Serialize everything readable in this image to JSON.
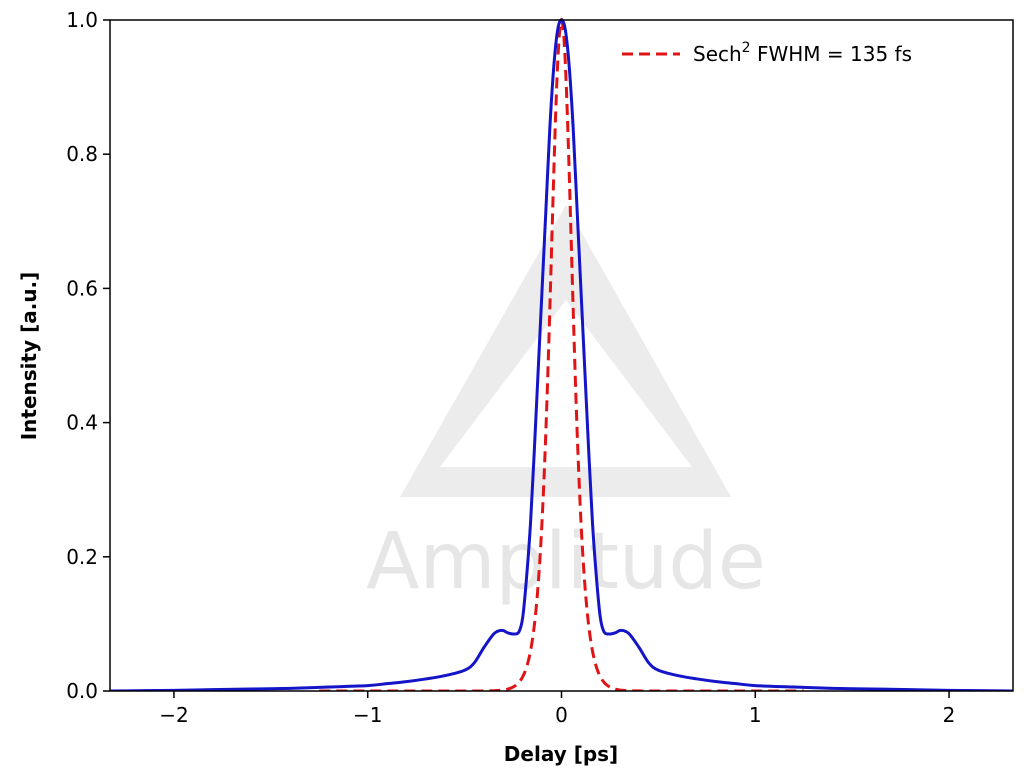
{
  "chart_data": {
    "type": "line",
    "title": "",
    "xlabel": "Delay [ps]",
    "ylabel": "Intensity [a.u.]",
    "xlim": [
      -2.33,
      2.33
    ],
    "ylim": [
      0.0,
      1.0
    ],
    "xticks": [
      {
        "value": -2,
        "label": "−2"
      },
      {
        "value": -1,
        "label": "−1"
      },
      {
        "value": 0,
        "label": "0"
      },
      {
        "value": 1,
        "label": "1"
      },
      {
        "value": 2,
        "label": "2"
      }
    ],
    "yticks": [
      {
        "value": 0.0,
        "label": "0.0"
      },
      {
        "value": 0.2,
        "label": "0.2"
      },
      {
        "value": 0.4,
        "label": "0.4"
      },
      {
        "value": 0.6,
        "label": "0.6"
      },
      {
        "value": 0.8,
        "label": "0.8"
      },
      {
        "value": 1.0,
        "label": "1.0"
      }
    ],
    "grid": false,
    "legend": {
      "position": "top-right",
      "label_main": "Sech",
      "label_sup": "2",
      "label_rest": " FWHM = 135 fs"
    },
    "series": [
      {
        "name": "",
        "color": "#1414c8",
        "style": "solid",
        "x": [
          -2.33,
          -2.0,
          -1.8,
          -1.6,
          -1.4,
          -1.2,
          -1.0,
          -0.9,
          -0.8,
          -0.7,
          -0.6,
          -0.5,
          -0.45,
          -0.4,
          -0.35,
          -0.32,
          -0.3,
          -0.28,
          -0.25,
          -0.22,
          -0.2,
          -0.18,
          -0.16,
          -0.14,
          -0.12,
          -0.1,
          -0.08,
          -0.06,
          -0.04,
          -0.02,
          0.0,
          0.02,
          0.04,
          0.06,
          0.08,
          0.1,
          0.12,
          0.14,
          0.16,
          0.18,
          0.2,
          0.22,
          0.25,
          0.28,
          0.3,
          0.32,
          0.35,
          0.4,
          0.45,
          0.5,
          0.6,
          0.7,
          0.8,
          0.9,
          1.0,
          1.2,
          1.4,
          1.6,
          1.8,
          2.0,
          2.33
        ],
        "y": [
          0.0,
          0.001,
          0.002,
          0.003,
          0.004,
          0.006,
          0.008,
          0.011,
          0.014,
          0.018,
          0.023,
          0.031,
          0.042,
          0.065,
          0.085,
          0.09,
          0.09,
          0.087,
          0.085,
          0.088,
          0.11,
          0.17,
          0.25,
          0.36,
          0.48,
          0.6,
          0.72,
          0.84,
          0.93,
          0.985,
          1.0,
          0.985,
          0.93,
          0.84,
          0.72,
          0.6,
          0.48,
          0.36,
          0.25,
          0.17,
          0.11,
          0.088,
          0.085,
          0.087,
          0.09,
          0.09,
          0.085,
          0.065,
          0.042,
          0.031,
          0.023,
          0.018,
          0.014,
          0.011,
          0.008,
          0.006,
          0.004,
          0.003,
          0.002,
          0.001,
          0.0
        ]
      },
      {
        "name": "Sech² FWHM = 135 fs",
        "color": "#e01414",
        "style": "dashed",
        "function": "sech2",
        "fwhm_ps": 0.135,
        "x_range": [
          -1.25,
          1.25
        ]
      }
    ],
    "watermark": {
      "text": "Amplitude",
      "shape": "triangle-logo"
    }
  }
}
